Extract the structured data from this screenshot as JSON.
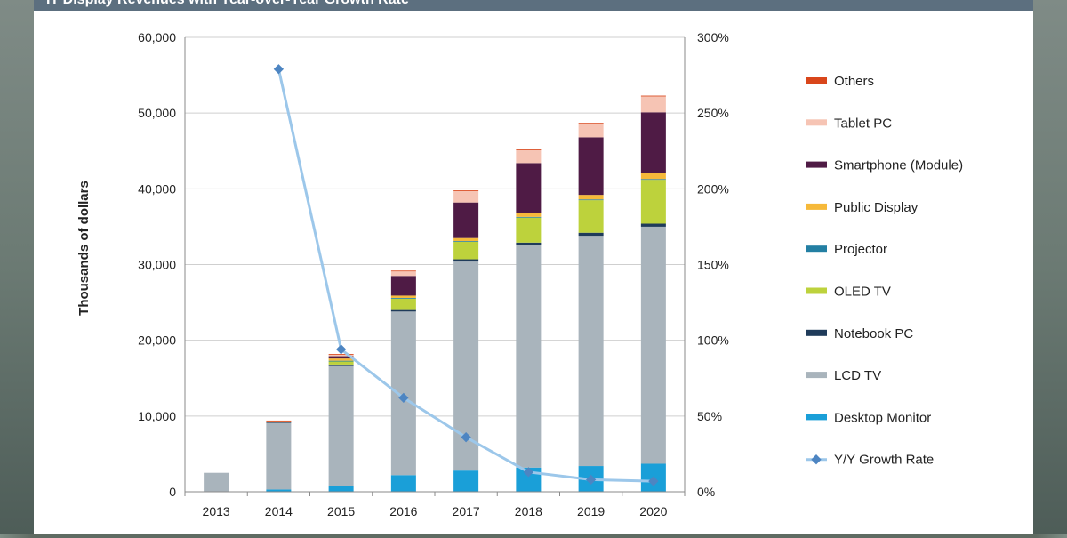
{
  "header": {
    "title": "IT Display Revenues with Year-over-Year Growth Rate"
  },
  "chart_data": {
    "type": "bar",
    "stacked": true,
    "categories": [
      "2013",
      "2014",
      "2015",
      "2016",
      "2017",
      "2018",
      "2019",
      "2020"
    ],
    "ylabel": "Thousands of dollars",
    "ylim": [
      0,
      60000
    ],
    "yticks": [
      "0",
      "10,000",
      "20,000",
      "30,000",
      "40,000",
      "50,000",
      "60,000"
    ],
    "y2lim": [
      0,
      300
    ],
    "y2ticks": [
      "0%",
      "50%",
      "100%",
      "150%",
      "200%",
      "250%",
      "300%"
    ],
    "legend_position": "right",
    "series": [
      {
        "name": "Desktop Monitor",
        "color": "#1a9fd8",
        "values": [
          0,
          300,
          800,
          2200,
          2800,
          3200,
          3400,
          3700
        ]
      },
      {
        "name": "LCD TV",
        "color": "#a9b4bc",
        "values": [
          2500,
          8800,
          15800,
          21600,
          27600,
          29400,
          30400,
          31300
        ]
      },
      {
        "name": "Notebook PC",
        "color": "#1f3b5a",
        "values": [
          0,
          100,
          200,
          200,
          300,
          300,
          400,
          400
        ]
      },
      {
        "name": "OLED TV",
        "color": "#bdd23c",
        "values": [
          0,
          0,
          400,
          1500,
          2300,
          3300,
          4300,
          5800
        ]
      },
      {
        "name": "Projector",
        "color": "#237fa3",
        "values": [
          0,
          0,
          100,
          100,
          100,
          100,
          100,
          100
        ]
      },
      {
        "name": "Public Display",
        "color": "#f6b93a",
        "values": [
          0,
          100,
          300,
          300,
          400,
          500,
          600,
          800
        ]
      },
      {
        "name": "Smartphone (Module)",
        "color": "#4f1b45",
        "values": [
          0,
          0,
          300,
          2600,
          4700,
          6600,
          7600,
          8000
        ]
      },
      {
        "name": "Tablet PC",
        "color": "#f6c4b4",
        "values": [
          0,
          0,
          200,
          600,
          1500,
          1700,
          1800,
          2100
        ]
      },
      {
        "name": "Others",
        "color": "#d9461b",
        "values": [
          0,
          100,
          100,
          100,
          100,
          100,
          100,
          100
        ]
      }
    ],
    "line_series": {
      "name": "Y/Y Growth Rate",
      "color": "#9cc7ea",
      "marker_color": "#4d85c2",
      "values": [
        null,
        279,
        94,
        62,
        36,
        13,
        8,
        7
      ]
    }
  }
}
